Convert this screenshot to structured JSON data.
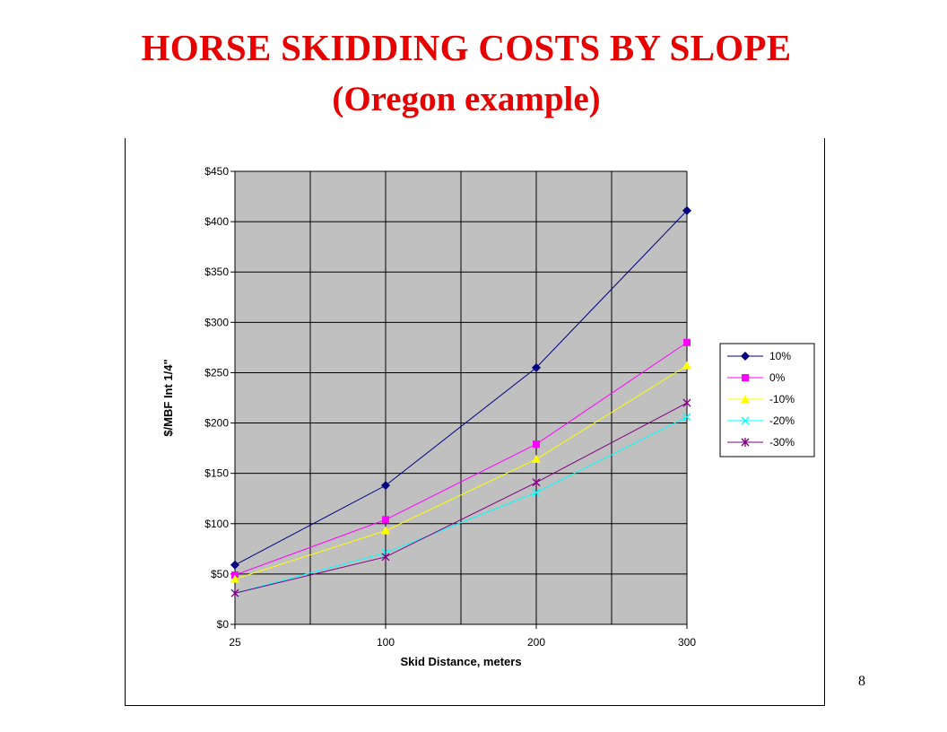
{
  "slide": {
    "title_line1": "HORSE SKIDDING COSTS BY SLOPE",
    "title_line2": "(Oregon example)",
    "page_number": "8"
  },
  "colors": {
    "title": "#e60000",
    "plot_bg": "#c0c0c0",
    "gridline": "#000000"
  },
  "chart_data": {
    "type": "line",
    "title": "",
    "xlabel": "Skid Distance, meters",
    "ylabel": "$/MBF Int 1/4\"",
    "x": [
      "25",
      "100",
      "200",
      "300"
    ],
    "ylim": [
      0,
      450
    ],
    "yticks": [
      0,
      50,
      100,
      150,
      200,
      250,
      300,
      350,
      400,
      450
    ],
    "ytick_labels": [
      "$0",
      "$50",
      "$100",
      "$150",
      "$200",
      "$250",
      "$300",
      "$350",
      "$400",
      "$450"
    ],
    "grid": true,
    "legend_position": "right",
    "series": [
      {
        "name": "10%",
        "values": [
          59,
          138,
          255,
          411
        ],
        "color": "#000080",
        "marker": "diamond"
      },
      {
        "name": "0%",
        "values": [
          49,
          104,
          179,
          280
        ],
        "color": "#ff00ff",
        "marker": "square"
      },
      {
        "name": "-10%",
        "values": [
          45,
          93,
          164,
          257
        ],
        "color": "#ffff00",
        "marker": "triangle"
      },
      {
        "name": "-20%",
        "values": [
          31,
          71,
          131,
          206
        ],
        "color": "#00ffff",
        "marker": "x"
      },
      {
        "name": "-30%",
        "values": [
          31,
          67,
          141,
          220
        ],
        "color": "#800080",
        "marker": "star"
      }
    ]
  }
}
